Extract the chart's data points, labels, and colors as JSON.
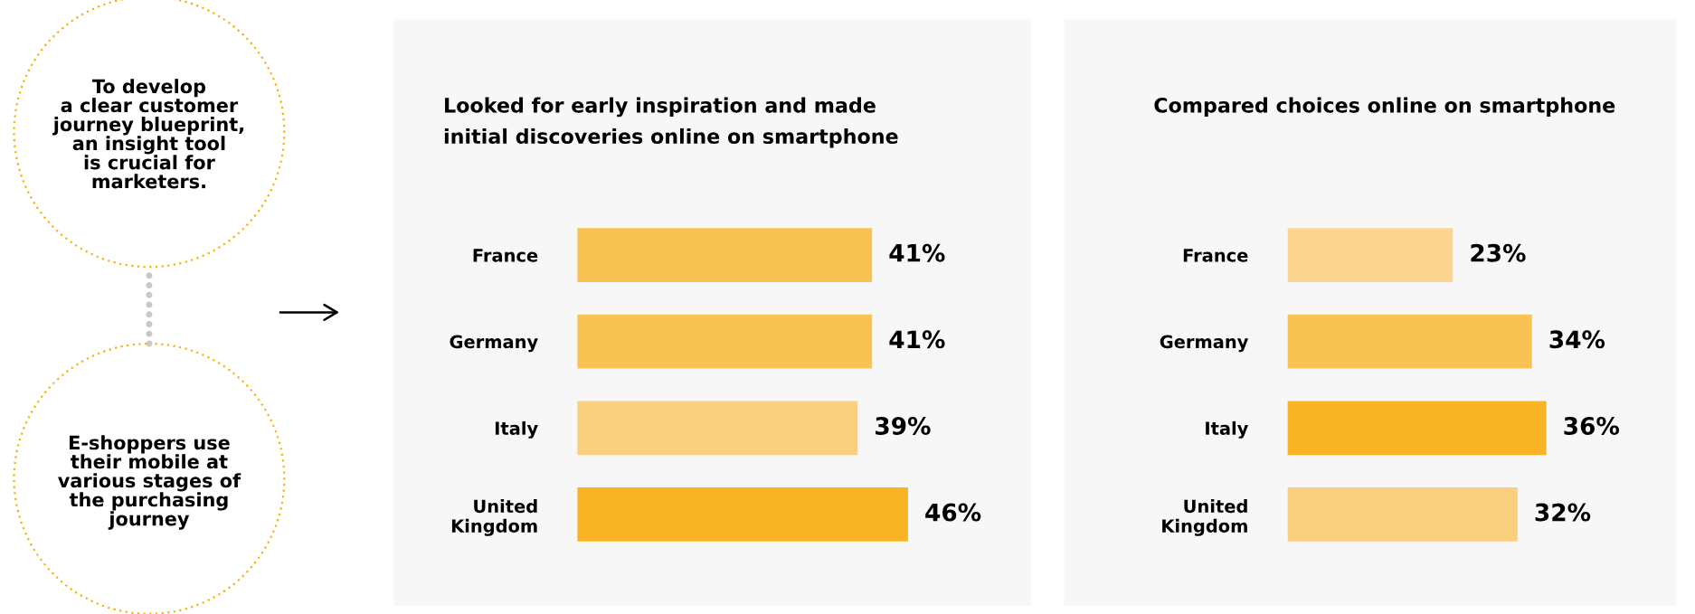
{
  "chart_data": [
    {
      "type": "other",
      "annotations": [
        "To develop\na clear customer\njourney blueprint,\nan insight tool\nis crucial for\nmarketers.",
        "E-shoppers use\ntheir mobile at\nvarious stages of\nthe purchasing\njourney"
      ]
    },
    {
      "type": "bar",
      "orientation": "horizontal",
      "title": "Looked for early inspiration and made\ninitial discoveries online on smartphone",
      "categories": [
        "France",
        "Germany",
        "Italy",
        "United\nKingdom"
      ],
      "values": [
        41,
        41,
        39,
        46
      ],
      "colors": [
        "#f9c353",
        "#f9c353",
        "#fbcf80",
        "#f8b424"
      ],
      "value_labels": [
        "41%",
        "41%",
        "39%",
        "46%"
      ],
      "tick_labels": "y",
      "grid": false
    },
    {
      "type": "bar",
      "orientation": "horizontal",
      "title": "Compared choices online on smartphone",
      "categories": [
        "France",
        "Germany",
        "Italy",
        "United\nKingdom"
      ],
      "values": [
        23,
        34,
        36,
        32
      ],
      "colors": [
        "#fcd690",
        "#f9c353",
        "#f8b424",
        "#fbcf80"
      ],
      "value_labels": [
        "23%",
        "34%",
        "36%",
        "32%"
      ],
      "tick_labels": "y",
      "grid": false
    }
  ]
}
